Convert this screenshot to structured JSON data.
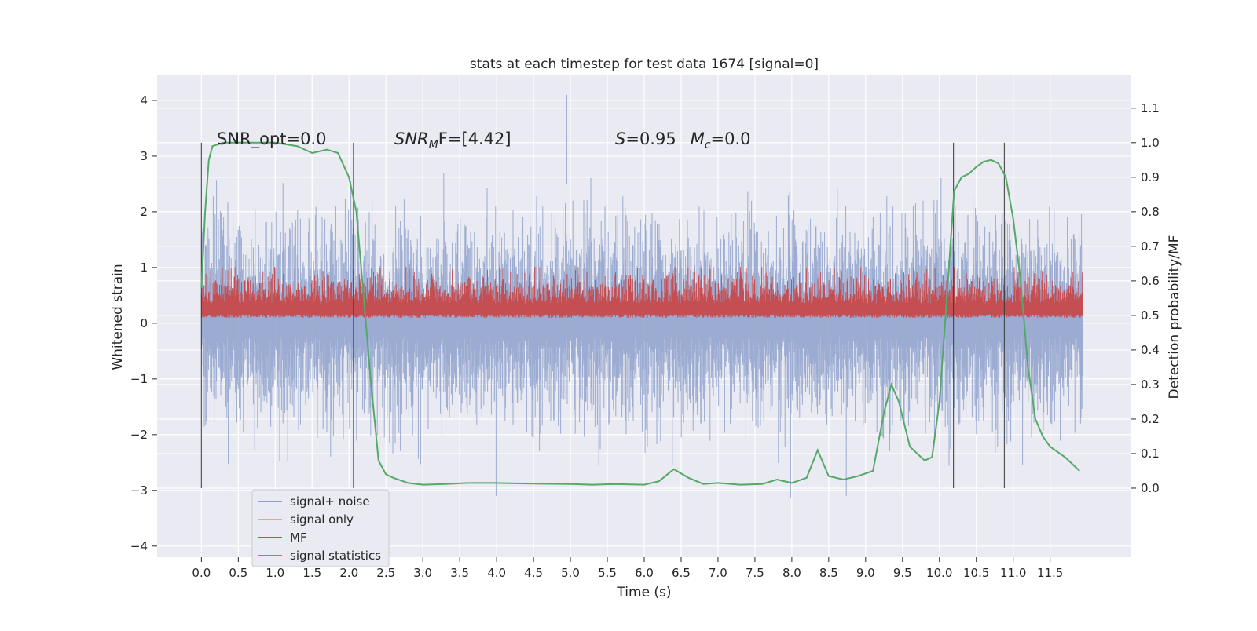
{
  "chart_data": {
    "type": "line",
    "title": "stats at each timestep for test data 1674 [signal=0]",
    "xlabel": "Time (s)",
    "ylabel": "Whitened strain",
    "ylabel_right": "Detection probability/MF",
    "xlim": [
      -0.6,
      12.6
    ],
    "ylim": [
      -4.2,
      4.45
    ],
    "ylim_right": [
      -0.2,
      1.195
    ],
    "x_ticks": [
      "0.0",
      "0.5",
      "1.0",
      "1.5",
      "2.0",
      "2.5",
      "3.0",
      "3.5",
      "4.0",
      "4.5",
      "5.0",
      "5.5",
      "6.0",
      "6.5",
      "7.0",
      "7.5",
      "8.0",
      "8.5",
      "9.0",
      "9.5",
      "10.0",
      "10.5",
      "11.0",
      "11.5"
    ],
    "y_ticks": [
      "4",
      "3",
      "2",
      "1",
      "0",
      "−1",
      "−2",
      "−3",
      "−4"
    ],
    "y_ticks_right": [
      "1.1",
      "1.0",
      "0.9",
      "0.8",
      "0.7",
      "0.6",
      "0.5",
      "0.4",
      "0.3",
      "0.2",
      "0.1",
      "0.0"
    ],
    "grid": true,
    "legend_position": "lower-left",
    "annotations": {
      "snr_opt": "SNR_opt=0.0",
      "snr_mf_prefix": "SNR",
      "snr_mf_sub": "M",
      "snr_mf_suffix": "F=[4.42]",
      "s_prefix": "S",
      "s_value": "=0.95",
      "mc_prefix": "M",
      "mc_sub": "c",
      "mc_value": "=0.0"
    },
    "vertical_lines_x": [
      0.0,
      2.06,
      10.19,
      10.88
    ],
    "series": [
      {
        "name": "signal+ noise",
        "color": "#8da0cb",
        "style": "dense noise, roughly between -3 and +3 whitened strain, spikes to about 4.1 near t=4.95"
      },
      {
        "name": "signal only",
        "color": "#e8a58a",
        "values": "zero"
      },
      {
        "name": "MF",
        "color": "#c44e52",
        "style": "dense trace on right axis, mostly between 0.5 and 0.65"
      },
      {
        "name": "signal statistics",
        "color": "#55a868",
        "x": [
          0.0,
          0.05,
          0.1,
          0.15,
          0.3,
          0.6,
          1.0,
          1.3,
          1.5,
          1.7,
          1.85,
          2.0,
          2.1,
          2.2,
          2.3,
          2.4,
          2.5,
          2.6,
          2.8,
          3.0,
          3.3,
          3.6,
          4.0,
          4.5,
          5.0,
          5.3,
          5.6,
          6.0,
          6.2,
          6.4,
          6.6,
          6.8,
          7.0,
          7.3,
          7.6,
          7.8,
          8.0,
          8.2,
          8.35,
          8.5,
          8.7,
          8.9,
          9.1,
          9.25,
          9.35,
          9.45,
          9.6,
          9.8,
          9.9,
          10.0,
          10.1,
          10.2,
          10.3,
          10.4,
          10.5,
          10.6,
          10.7,
          10.8,
          10.9,
          11.0,
          11.1,
          11.2,
          11.3,
          11.4,
          11.5,
          11.7,
          11.9
        ],
        "y": [
          0.58,
          0.8,
          0.95,
          0.99,
          1.0,
          1.0,
          1.0,
          0.99,
          0.97,
          0.98,
          0.97,
          0.9,
          0.8,
          0.55,
          0.3,
          0.08,
          0.04,
          0.03,
          0.015,
          0.01,
          0.012,
          0.015,
          0.015,
          0.013,
          0.012,
          0.01,
          0.012,
          0.01,
          0.02,
          0.055,
          0.03,
          0.012,
          0.015,
          0.01,
          0.012,
          0.025,
          0.015,
          0.03,
          0.11,
          0.035,
          0.025,
          0.035,
          0.05,
          0.22,
          0.3,
          0.25,
          0.12,
          0.08,
          0.09,
          0.25,
          0.55,
          0.86,
          0.9,
          0.91,
          0.93,
          0.945,
          0.95,
          0.94,
          0.9,
          0.78,
          0.6,
          0.35,
          0.2,
          0.15,
          0.12,
          0.09,
          0.05
        ]
      }
    ]
  }
}
